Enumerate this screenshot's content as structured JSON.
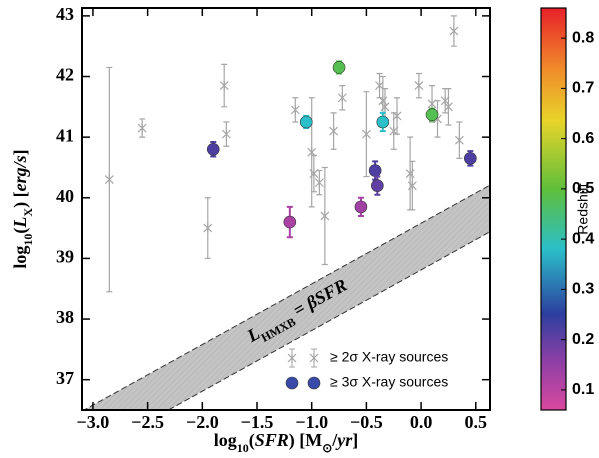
{
  "chart_data": {
    "type": "scatter",
    "xlabel": [
      {
        "text": "log"
      },
      {
        "text": "10",
        "sub": true
      },
      {
        "text": "("
      },
      {
        "text": "SFR",
        "italic": true
      },
      {
        "text": ") [M"
      },
      {
        "text": "⊙",
        "sub": true
      },
      {
        "text": "/"
      },
      {
        "text": "yr",
        "italic": true
      },
      {
        "text": "]"
      }
    ],
    "ylabel": [
      {
        "text": "log"
      },
      {
        "text": "10",
        "sub": true
      },
      {
        "text": "("
      },
      {
        "text": "L",
        "italic": true
      },
      {
        "text": "X",
        "sub": true
      },
      {
        "text": ") ["
      },
      {
        "text": "erg/s",
        "italic": true
      },
      {
        "text": "]"
      }
    ],
    "annotation": [
      {
        "text": "L",
        "italic": true
      },
      {
        "text": "HMXB",
        "sub": true
      },
      {
        "text": " = "
      },
      {
        "text": "βSFR",
        "italic": true
      }
    ],
    "xlim": [
      -3.1,
      0.63
    ],
    "ylim": [
      36.5,
      43.13
    ],
    "xticks": [
      {
        "value": -3,
        "label": "−3.0"
      },
      {
        "value": -2.5,
        "label": "−2.5"
      },
      {
        "value": -2,
        "label": "−2.0"
      },
      {
        "value": -1.5,
        "label": "−1.5"
      },
      {
        "value": -1,
        "label": "−1.0"
      },
      {
        "value": -0.5,
        "label": "−0.5"
      },
      {
        "value": 0,
        "label": "0.0"
      },
      {
        "value": 0.5,
        "label": "0.5"
      }
    ],
    "yticks": [
      37,
      38,
      39,
      40,
      41,
      42,
      43
    ],
    "band": {
      "x": [
        -3.1,
        0.63
      ],
      "upper": [
        36.48,
        40.21
      ],
      "lower": [
        35.71,
        39.44
      ],
      "color": "#c4c4c4"
    },
    "series": [
      {
        "name": "≥ 2σ X-ray sources",
        "color": "#a6a6a6",
        "x": [
          -2.85,
          -2.55,
          -1.95,
          -1.8,
          -1.78,
          -1.15,
          -1.0,
          -0.98,
          -0.93,
          -0.88,
          -0.8,
          -0.72,
          -0.5,
          -0.38,
          -0.35,
          -0.33,
          -0.25,
          -0.22,
          -0.1,
          -0.08,
          -0.02,
          0.1,
          0.15,
          0.22,
          0.25,
          0.3,
          0.35
        ],
        "y": [
          40.3,
          41.15,
          39.5,
          41.85,
          41.05,
          41.45,
          40.75,
          40.4,
          40.25,
          39.7,
          41.1,
          41.65,
          41.05,
          41.85,
          41.6,
          41.5,
          41.1,
          41.35,
          40.4,
          40.2,
          41.85,
          41.55,
          41.3,
          41.6,
          41.5,
          42.75,
          40.95
        ],
        "yerr": [
          1.85,
          0.15,
          0.5,
          0.35,
          0.2,
          0.2,
          0.9,
          0.3,
          0.2,
          0.8,
          0.3,
          0.2,
          0.7,
          0.2,
          0.4,
          0.3,
          0.3,
          0.3,
          0.6,
          0.4,
          0.2,
          0.3,
          0.3,
          0.2,
          0.3,
          0.25,
          0.3
        ]
      },
      {
        "name": "≥ 3σ X-ray sources",
        "x": [
          -1.9,
          -1.2,
          -1.05,
          -0.75,
          -0.55,
          -0.42,
          -0.4,
          -0.35,
          0.1,
          0.45
        ],
        "y": [
          40.8,
          39.6,
          41.25,
          42.15,
          39.85,
          40.45,
          40.2,
          41.25,
          41.37,
          40.65
        ],
        "yerr": [
          0.12,
          0.25,
          0.1,
          0.1,
          0.15,
          0.15,
          0.15,
          0.15,
          0.1,
          0.12
        ],
        "z": [
          0.22,
          0.12,
          0.38,
          0.48,
          0.13,
          0.22,
          0.2,
          0.38,
          0.48,
          0.22
        ]
      }
    ],
    "colorbar": {
      "label": "Redshift",
      "clim": [
        0.06,
        0.86
      ],
      "ticks": [
        0.1,
        0.2,
        0.3,
        0.4,
        0.5,
        0.6,
        0.7,
        0.8
      ]
    }
  }
}
